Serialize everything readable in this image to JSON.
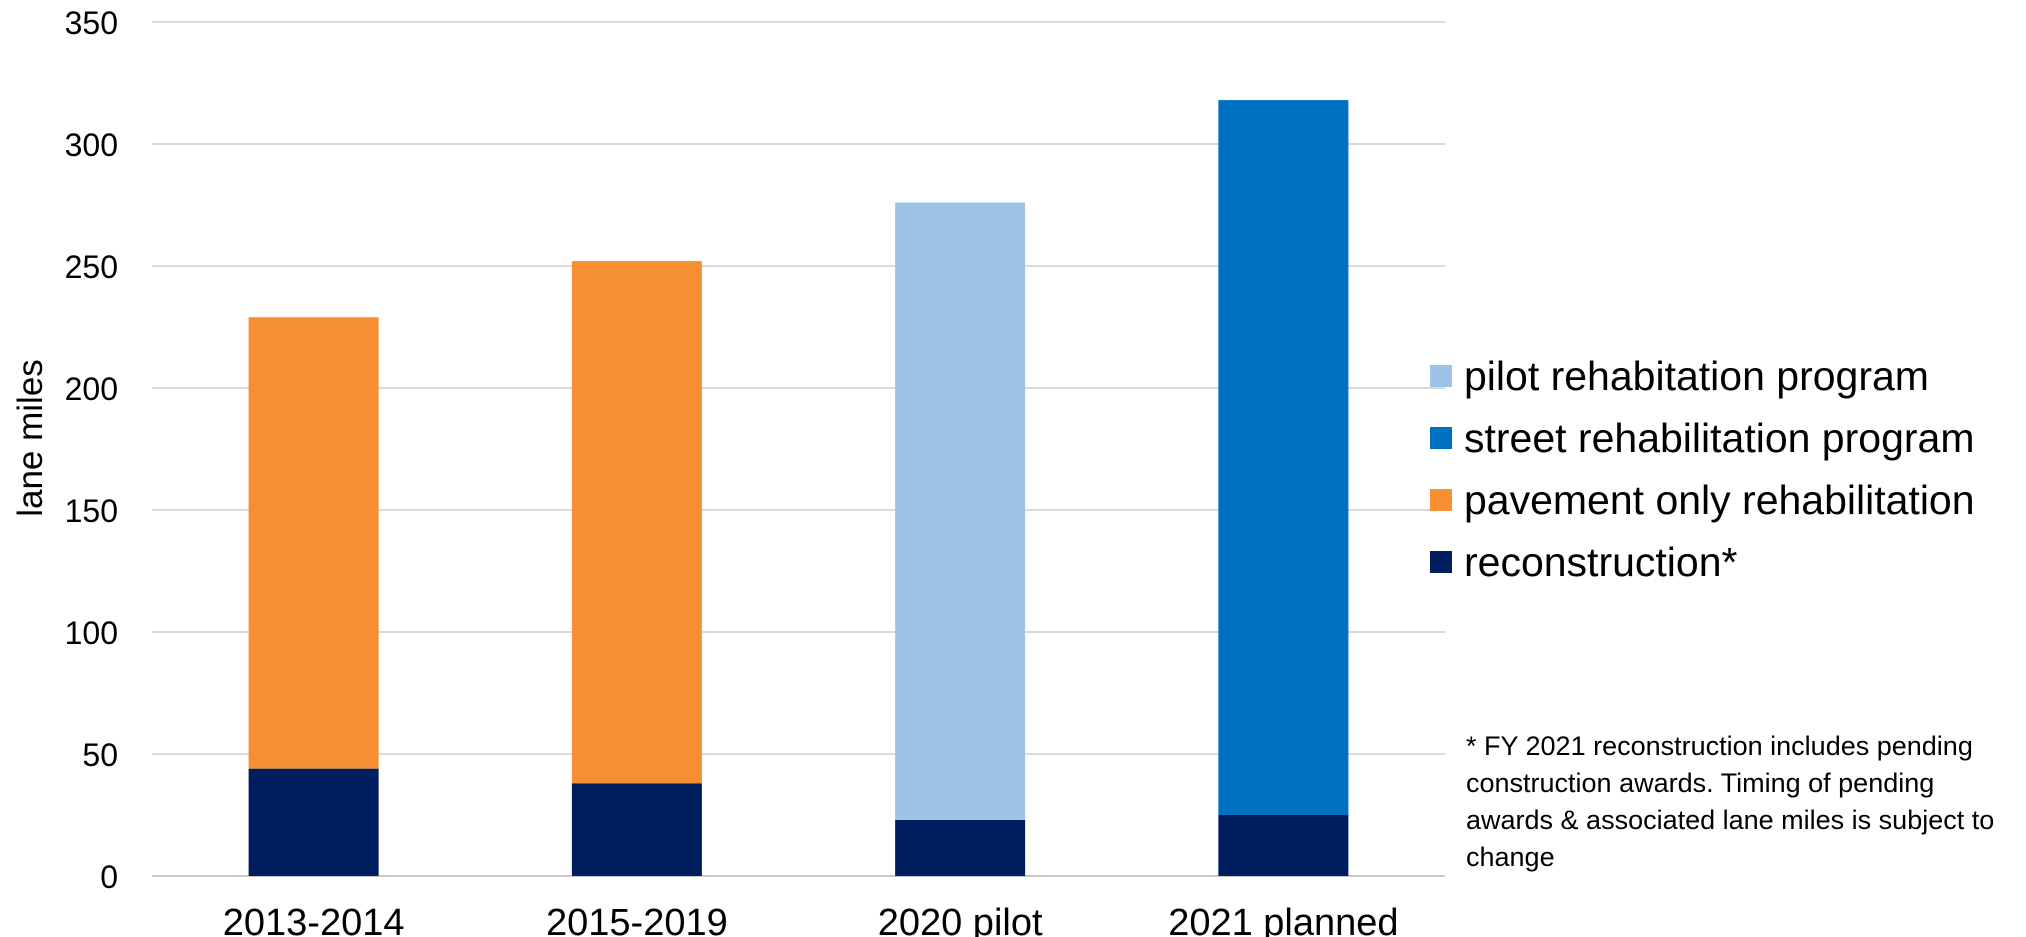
{
  "chart_data": {
    "type": "bar",
    "stacked": true,
    "categories": [
      "2013-2014",
      "2015-2019",
      "2020 pilot",
      "2021 planned"
    ],
    "series": [
      {
        "name": "reconstruction*",
        "color": "#001d5e",
        "values": [
          44,
          38,
          23,
          25
        ]
      },
      {
        "name": "pavement only rehabilitation",
        "color": "#f68e32",
        "values": [
          185,
          214,
          0,
          0
        ]
      },
      {
        "name": "street rehabilitation program",
        "color": "#0070c0",
        "values": [
          0,
          0,
          0,
          293
        ]
      },
      {
        "name": "pilot rehabitation program",
        "color": "#9dc3e6",
        "values": [
          0,
          0,
          253,
          0
        ]
      }
    ],
    "ylabel": "lane miles",
    "ylim": [
      0,
      350
    ],
    "yticks": [
      "0",
      "50",
      "100",
      "150",
      "200",
      "250",
      "300",
      "350"
    ],
    "grid": true,
    "legend_placement": "right",
    "legend": [
      {
        "label": "pilot rehabitation program",
        "color": "#9dc3e6"
      },
      {
        "label": "street rehabilitation program",
        "color": "#0070c0"
      },
      {
        "label": "pavement only rehabilitation",
        "color": "#f68e32"
      },
      {
        "label": "reconstruction*",
        "color": "#001d5e"
      }
    ],
    "footnote": "* FY 2021 reconstruction includes pending construction awards. Timing of pending awards & associated lane miles is subject to change"
  }
}
